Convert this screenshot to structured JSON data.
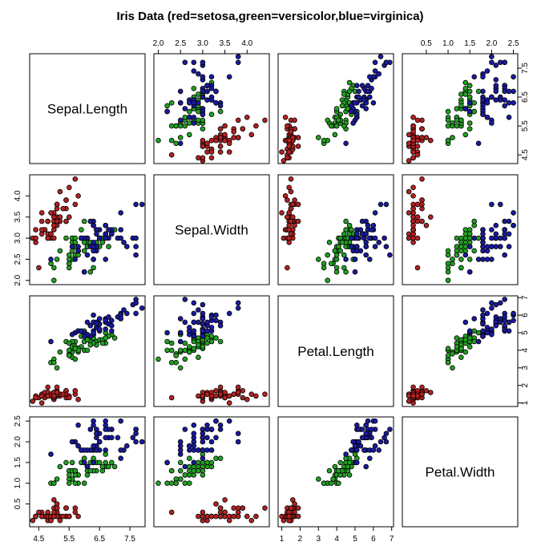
{
  "chart_data": {
    "type": "scatter",
    "title": "Iris Data (red=setosa,green=versicolor,blue=virginica)",
    "grid": false,
    "variables": [
      "Sepal.Length",
      "Sepal.Width",
      "Petal.Length",
      "Petal.Width"
    ],
    "axis_ranges": {
      "Sepal.Length": [
        4.2,
        8.0
      ],
      "Sepal.Width": [
        1.9,
        4.5
      ],
      "Petal.Length": [
        0.8,
        7.1
      ],
      "Petal.Width": [
        -0.05,
        2.6
      ]
    },
    "ticks": {
      "Sepal.Length": [
        "4.5",
        "5.5",
        "6.5",
        "7.5"
      ],
      "Sepal.Width": [
        "2.0",
        "2.5",
        "3.0",
        "3.5",
        "4.0"
      ],
      "Petal.Length": [
        "1",
        "2",
        "3",
        "4",
        "5",
        "6",
        "7"
      ],
      "Petal.Width": [
        "0.5",
        "1.0",
        "1.5",
        "2.0",
        "2.5"
      ]
    },
    "series": [
      {
        "color": "#B22222",
        "fields": [
          "Sepal.Length",
          "Sepal.Width",
          "Petal.Length",
          "Petal.Width"
        ],
        "points": [
          [
            5.1,
            3.5,
            1.4,
            0.2
          ],
          [
            4.9,
            3.0,
            1.4,
            0.2
          ],
          [
            4.7,
            3.2,
            1.3,
            0.2
          ],
          [
            4.6,
            3.1,
            1.5,
            0.2
          ],
          [
            5.0,
            3.6,
            1.4,
            0.2
          ],
          [
            5.4,
            3.9,
            1.7,
            0.4
          ],
          [
            4.6,
            3.4,
            1.4,
            0.3
          ],
          [
            5.0,
            3.4,
            1.5,
            0.2
          ],
          [
            4.4,
            2.9,
            1.4,
            0.2
          ],
          [
            4.9,
            3.1,
            1.5,
            0.1
          ],
          [
            5.4,
            3.7,
            1.5,
            0.2
          ],
          [
            4.8,
            3.4,
            1.6,
            0.2
          ],
          [
            4.8,
            3.0,
            1.4,
            0.1
          ],
          [
            4.3,
            3.0,
            1.1,
            0.1
          ],
          [
            5.8,
            4.0,
            1.2,
            0.2
          ],
          [
            5.7,
            4.4,
            1.5,
            0.4
          ],
          [
            5.4,
            3.9,
            1.3,
            0.4
          ],
          [
            5.1,
            3.5,
            1.4,
            0.3
          ],
          [
            5.7,
            3.8,
            1.7,
            0.3
          ],
          [
            5.1,
            3.8,
            1.5,
            0.3
          ],
          [
            5.4,
            3.4,
            1.7,
            0.2
          ],
          [
            5.1,
            3.7,
            1.5,
            0.4
          ],
          [
            4.6,
            3.6,
            1.0,
            0.2
          ],
          [
            5.1,
            3.3,
            1.7,
            0.5
          ],
          [
            4.8,
            3.4,
            1.9,
            0.2
          ],
          [
            5.0,
            3.0,
            1.6,
            0.2
          ],
          [
            5.0,
            3.4,
            1.6,
            0.4
          ],
          [
            5.2,
            3.5,
            1.5,
            0.2
          ],
          [
            5.2,
            3.4,
            1.4,
            0.2
          ],
          [
            4.7,
            3.2,
            1.6,
            0.2
          ],
          [
            4.8,
            3.1,
            1.6,
            0.2
          ],
          [
            5.4,
            3.4,
            1.5,
            0.4
          ],
          [
            5.2,
            4.1,
            1.5,
            0.1
          ],
          [
            5.5,
            4.2,
            1.4,
            0.2
          ],
          [
            4.9,
            3.1,
            1.5,
            0.2
          ],
          [
            5.0,
            3.2,
            1.2,
            0.2
          ],
          [
            5.5,
            3.5,
            1.3,
            0.2
          ],
          [
            4.9,
            3.6,
            1.4,
            0.1
          ],
          [
            4.4,
            3.0,
            1.3,
            0.2
          ],
          [
            5.1,
            3.4,
            1.5,
            0.2
          ],
          [
            5.0,
            3.5,
            1.3,
            0.3
          ],
          [
            4.5,
            2.3,
            1.3,
            0.3
          ],
          [
            4.4,
            3.2,
            1.3,
            0.2
          ],
          [
            5.0,
            3.5,
            1.6,
            0.6
          ],
          [
            5.1,
            3.8,
            1.9,
            0.4
          ],
          [
            4.8,
            3.0,
            1.4,
            0.3
          ],
          [
            5.1,
            3.8,
            1.6,
            0.2
          ],
          [
            4.6,
            3.2,
            1.4,
            0.2
          ],
          [
            5.3,
            3.7,
            1.5,
            0.2
          ],
          [
            5.0,
            3.3,
            1.4,
            0.2
          ]
        ]
      },
      {
        "color": "#22A022",
        "fields": [
          "Sepal.Length",
          "Sepal.Width",
          "Petal.Length",
          "Petal.Width"
        ],
        "points": [
          [
            7.0,
            3.2,
            4.7,
            1.4
          ],
          [
            6.4,
            3.2,
            4.5,
            1.5
          ],
          [
            6.9,
            3.1,
            4.9,
            1.5
          ],
          [
            5.5,
            2.3,
            4.0,
            1.3
          ],
          [
            6.5,
            2.8,
            4.6,
            1.5
          ],
          [
            5.7,
            2.8,
            4.5,
            1.3
          ],
          [
            6.3,
            3.3,
            4.7,
            1.6
          ],
          [
            4.9,
            2.4,
            3.3,
            1.0
          ],
          [
            6.6,
            2.9,
            4.6,
            1.3
          ],
          [
            5.2,
            2.7,
            3.9,
            1.4
          ],
          [
            5.0,
            2.0,
            3.5,
            1.0
          ],
          [
            5.9,
            3.0,
            4.2,
            1.5
          ],
          [
            6.0,
            2.2,
            4.0,
            1.0
          ],
          [
            6.1,
            2.9,
            4.7,
            1.4
          ],
          [
            5.6,
            2.9,
            3.6,
            1.3
          ],
          [
            6.7,
            3.1,
            4.4,
            1.4
          ],
          [
            5.6,
            3.0,
            4.5,
            1.5
          ],
          [
            5.8,
            2.7,
            4.1,
            1.0
          ],
          [
            6.2,
            2.2,
            4.5,
            1.5
          ],
          [
            5.6,
            2.5,
            3.9,
            1.1
          ],
          [
            5.9,
            3.2,
            4.8,
            1.8
          ],
          [
            6.1,
            2.8,
            4.0,
            1.3
          ],
          [
            6.3,
            2.5,
            4.9,
            1.5
          ],
          [
            6.1,
            2.8,
            4.7,
            1.2
          ],
          [
            6.4,
            2.9,
            4.3,
            1.3
          ],
          [
            6.6,
            3.0,
            4.4,
            1.4
          ],
          [
            6.8,
            2.8,
            4.8,
            1.4
          ],
          [
            6.7,
            3.0,
            5.0,
            1.7
          ],
          [
            6.0,
            2.9,
            4.5,
            1.5
          ],
          [
            5.7,
            2.6,
            3.5,
            1.0
          ],
          [
            5.5,
            2.4,
            3.8,
            1.1
          ],
          [
            5.5,
            2.4,
            3.7,
            1.0
          ],
          [
            5.8,
            2.7,
            3.9,
            1.2
          ],
          [
            6.0,
            2.7,
            5.1,
            1.6
          ],
          [
            5.4,
            3.0,
            4.5,
            1.5
          ],
          [
            6.0,
            3.4,
            4.5,
            1.6
          ],
          [
            6.7,
            3.1,
            4.7,
            1.5
          ],
          [
            6.3,
            2.3,
            4.4,
            1.3
          ],
          [
            5.6,
            3.0,
            4.1,
            1.3
          ],
          [
            5.5,
            2.5,
            4.0,
            1.3
          ],
          [
            5.5,
            2.6,
            4.4,
            1.2
          ],
          [
            6.1,
            3.0,
            4.6,
            1.4
          ],
          [
            5.8,
            2.6,
            4.0,
            1.2
          ],
          [
            5.0,
            2.3,
            3.3,
            1.0
          ],
          [
            5.6,
            2.7,
            4.2,
            1.3
          ],
          [
            5.7,
            3.0,
            4.2,
            1.2
          ],
          [
            5.7,
            2.9,
            4.2,
            1.3
          ],
          [
            6.2,
            2.9,
            4.3,
            1.3
          ],
          [
            5.1,
            2.5,
            3.0,
            1.1
          ],
          [
            5.7,
            2.8,
            4.1,
            1.3
          ]
        ]
      },
      {
        "color": "#1A1AA0",
        "fields": [
          "Sepal.Length",
          "Sepal.Width",
          "Petal.Length",
          "Petal.Width"
        ],
        "points": [
          [
            6.3,
            3.3,
            6.0,
            2.5
          ],
          [
            5.8,
            2.7,
            5.1,
            1.9
          ],
          [
            7.1,
            3.0,
            5.9,
            2.1
          ],
          [
            6.3,
            2.9,
            5.6,
            1.8
          ],
          [
            6.5,
            3.0,
            5.8,
            2.2
          ],
          [
            7.6,
            3.0,
            6.6,
            2.1
          ],
          [
            4.9,
            2.5,
            4.5,
            1.7
          ],
          [
            7.3,
            2.9,
            6.3,
            1.8
          ],
          [
            6.7,
            2.5,
            5.8,
            1.8
          ],
          [
            7.2,
            3.6,
            6.1,
            2.5
          ],
          [
            6.5,
            3.2,
            5.1,
            2.0
          ],
          [
            6.4,
            2.7,
            5.3,
            1.9
          ],
          [
            6.8,
            3.0,
            5.5,
            2.1
          ],
          [
            5.7,
            2.5,
            5.0,
            2.0
          ],
          [
            5.8,
            2.8,
            5.1,
            2.4
          ],
          [
            6.4,
            3.2,
            5.3,
            2.3
          ],
          [
            6.5,
            3.0,
            5.5,
            1.8
          ],
          [
            7.7,
            3.8,
            6.7,
            2.2
          ],
          [
            7.7,
            2.6,
            6.9,
            2.3
          ],
          [
            6.0,
            2.2,
            5.0,
            1.5
          ],
          [
            6.9,
            3.2,
            5.7,
            2.3
          ],
          [
            5.6,
            2.8,
            4.9,
            2.0
          ],
          [
            7.7,
            2.8,
            6.7,
            2.0
          ],
          [
            6.3,
            2.7,
            4.9,
            1.8
          ],
          [
            6.7,
            3.3,
            5.7,
            2.1
          ],
          [
            7.2,
            3.2,
            6.0,
            1.8
          ],
          [
            6.2,
            2.8,
            4.8,
            1.8
          ],
          [
            6.1,
            3.0,
            4.9,
            1.8
          ],
          [
            6.4,
            2.8,
            5.6,
            2.1
          ],
          [
            7.2,
            3.0,
            5.8,
            1.6
          ],
          [
            7.4,
            2.8,
            6.1,
            1.9
          ],
          [
            7.9,
            3.8,
            6.4,
            2.0
          ],
          [
            6.4,
            2.8,
            5.6,
            2.2
          ],
          [
            6.3,
            2.8,
            5.1,
            1.5
          ],
          [
            6.1,
            2.6,
            5.6,
            1.4
          ],
          [
            7.7,
            3.0,
            6.1,
            2.3
          ],
          [
            6.3,
            3.4,
            5.6,
            2.4
          ],
          [
            6.4,
            3.1,
            5.5,
            1.8
          ],
          [
            6.0,
            3.0,
            4.8,
            1.8
          ],
          [
            6.9,
            3.1,
            5.4,
            2.1
          ],
          [
            6.7,
            3.1,
            5.6,
            2.4
          ],
          [
            6.9,
            3.1,
            5.1,
            2.3
          ],
          [
            5.8,
            2.7,
            5.1,
            1.9
          ],
          [
            6.8,
            3.2,
            5.9,
            2.3
          ],
          [
            6.7,
            3.3,
            5.7,
            2.5
          ],
          [
            6.7,
            3.0,
            5.2,
            2.3
          ],
          [
            6.3,
            2.5,
            5.0,
            1.9
          ],
          [
            6.5,
            3.0,
            5.2,
            2.0
          ],
          [
            6.2,
            3.4,
            5.4,
            2.3
          ],
          [
            5.9,
            3.0,
            5.1,
            1.8
          ]
        ]
      }
    ]
  }
}
